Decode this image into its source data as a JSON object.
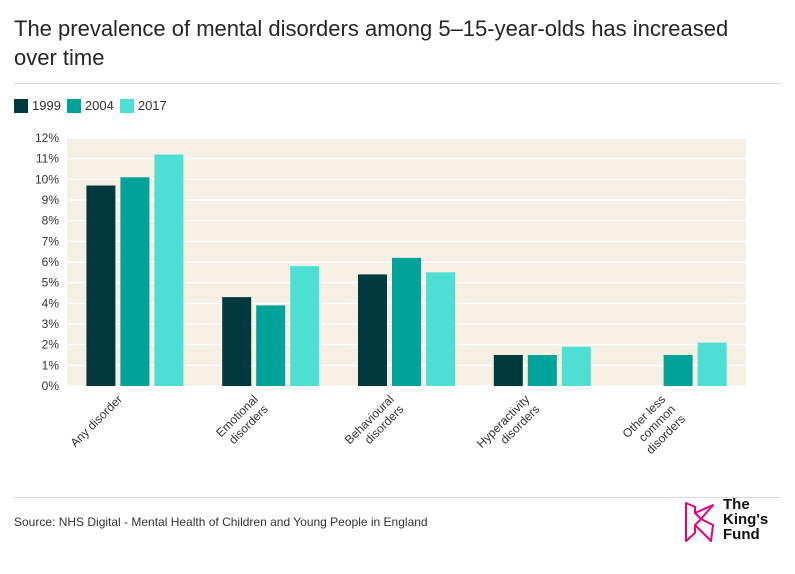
{
  "chart_data": {
    "type": "bar",
    "title": "The prevalence of mental disorders among 5–15-year-olds has increased over time",
    "categories": [
      "Any disorder",
      "Emotional disorders",
      "Behavioural disorders",
      "Hyperactivity disorders",
      "Other less common disorders"
    ],
    "category_lines": [
      [
        "Any disorder"
      ],
      [
        "Emotional",
        "disorders"
      ],
      [
        "Behavioural",
        "disorders"
      ],
      [
        "Hyperactivity",
        "disorders"
      ],
      [
        "Other less",
        "common",
        "disorders"
      ]
    ],
    "series": [
      {
        "name": "1999",
        "color": "#003a3f",
        "values": [
          9.7,
          4.3,
          5.4,
          1.5,
          null
        ]
      },
      {
        "name": "2004",
        "color": "#00a39a",
        "values": [
          10.1,
          3.9,
          6.2,
          1.5,
          1.5
        ]
      },
      {
        "name": "2017",
        "color": "#4ddfd3",
        "values": [
          11.2,
          5.8,
          5.5,
          1.9,
          2.1
        ]
      }
    ],
    "yticks": [
      "0%",
      "1%",
      "2%",
      "3%",
      "4%",
      "5%",
      "6%",
      "7%",
      "8%",
      "9%",
      "10%",
      "11%",
      "12%"
    ],
    "ylim": [
      0,
      12
    ],
    "xlabel": "",
    "ylabel": "",
    "grid": true,
    "legend_position": "top-left",
    "plot_background": "#f5efe4"
  },
  "source": "Source: NHS Digital - Mental Health of Children and Young People in England",
  "logo": {
    "line1": "The",
    "line2": "King's",
    "line3": "Fund",
    "color": "#e6007e"
  }
}
